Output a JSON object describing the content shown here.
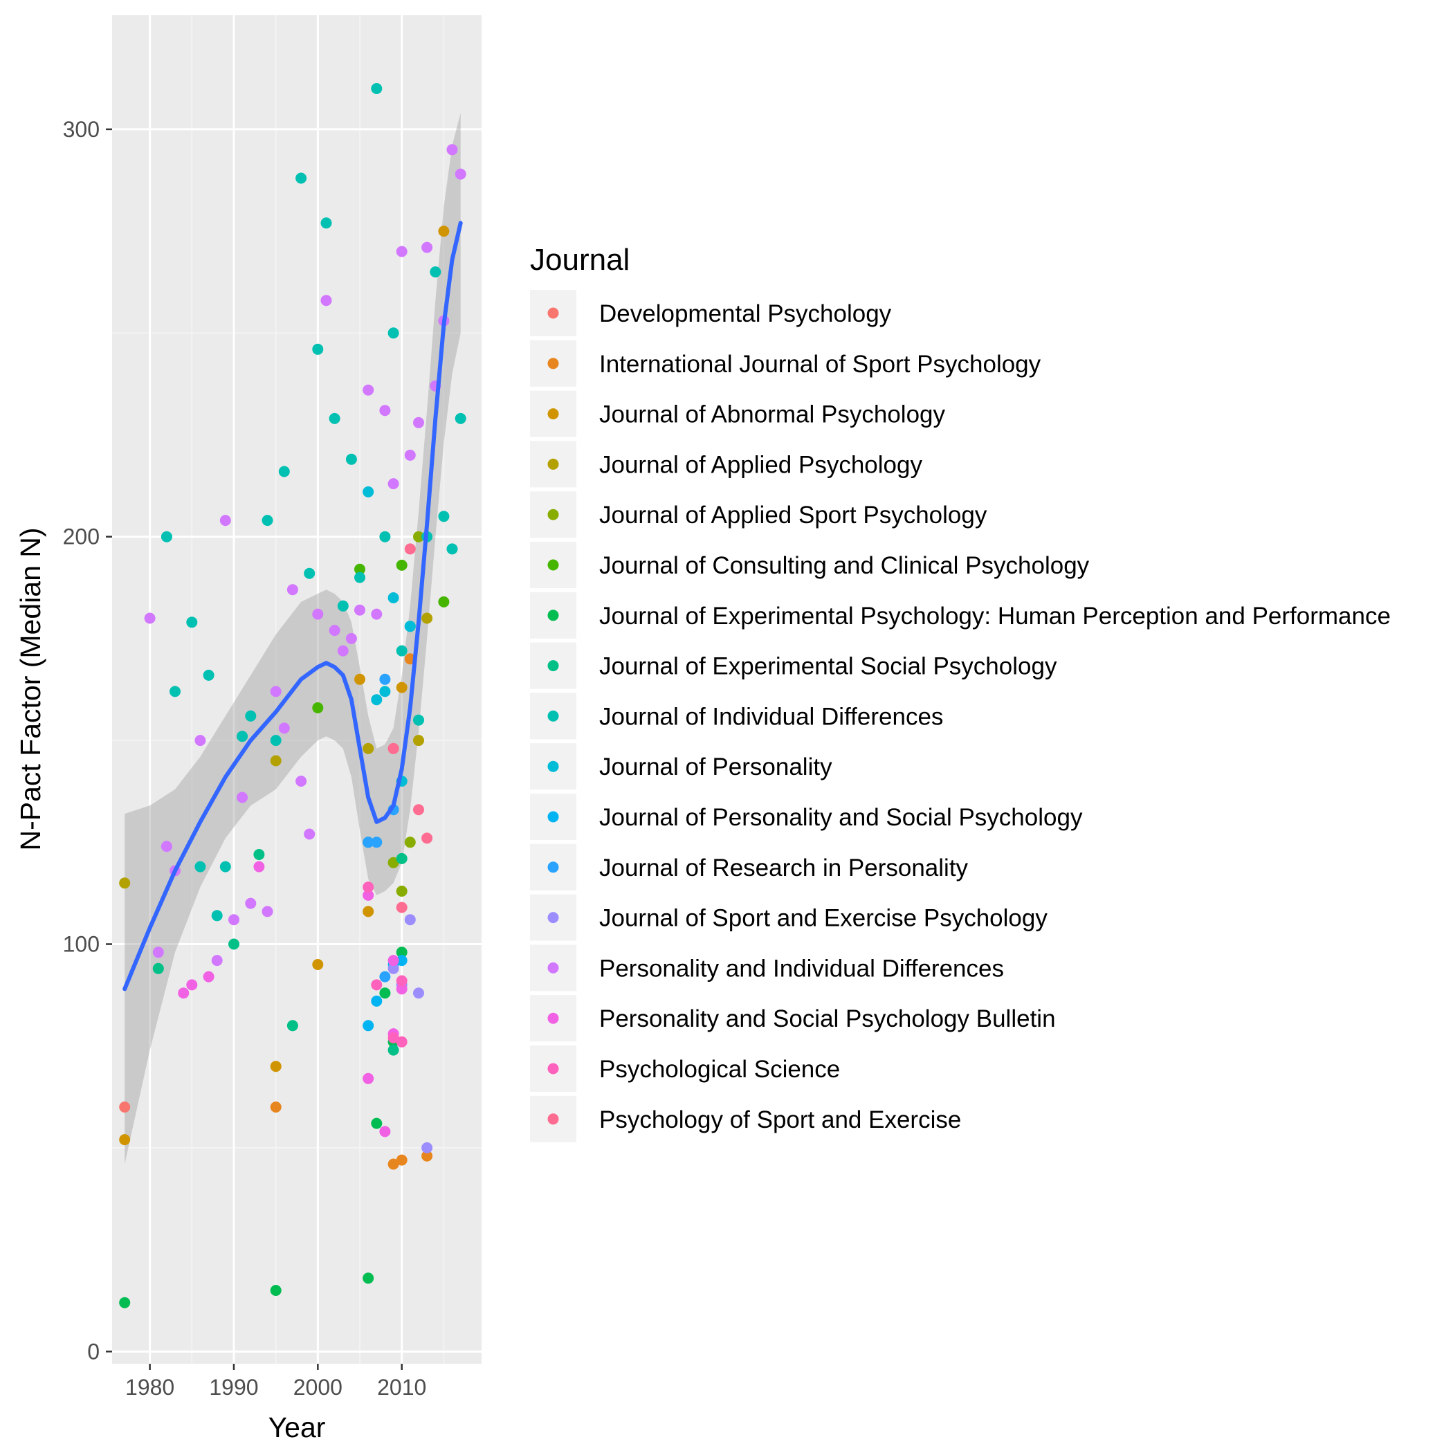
{
  "chart_data": {
    "type": "scatter",
    "xlabel": "Year",
    "ylabel": "N-Pact Factor (Median N)",
    "xlim": [
      1975.5,
      2019.5
    ],
    "ylim": [
      -3,
      328
    ],
    "x_ticks": [
      1980,
      1990,
      2000,
      2010
    ],
    "y_ticks": [
      0,
      100,
      200,
      300
    ],
    "grid": true,
    "legend": {
      "title": "Journal",
      "position": "right"
    },
    "series": [
      {
        "name": "Developmental Psychology",
        "color": "#F8766D",
        "points": [
          [
            1977,
            60
          ],
          [
            2009,
            148
          ]
        ]
      },
      {
        "name": "International Journal of Sport Psychology",
        "color": "#E7851E",
        "points": [
          [
            1995,
            60
          ],
          [
            2009,
            46
          ],
          [
            2010,
            47
          ],
          [
            2011,
            170
          ],
          [
            2013,
            48
          ]
        ]
      },
      {
        "name": "Journal of Abnormal Psychology",
        "color": "#D09400",
        "points": [
          [
            1977,
            52
          ],
          [
            1995,
            70
          ],
          [
            2000,
            95
          ],
          [
            2005,
            165
          ],
          [
            2006,
            108
          ],
          [
            2010,
            163
          ],
          [
            2015,
            275
          ]
        ]
      },
      {
        "name": "Journal of Applied Psychology",
        "color": "#B2A100",
        "points": [
          [
            1977,
            115
          ],
          [
            1995,
            145
          ],
          [
            2006,
            148
          ],
          [
            2012,
            150
          ],
          [
            2013,
            180
          ]
        ]
      },
      {
        "name": "Journal of Applied Sport Psychology",
        "color": "#89AC00",
        "points": [
          [
            2009,
            120
          ],
          [
            2010,
            113
          ],
          [
            2011,
            125
          ],
          [
            2012,
            200
          ]
        ]
      },
      {
        "name": "Journal of Consulting and Clinical Psychology",
        "color": "#45B500",
        "points": [
          [
            2000,
            158
          ],
          [
            2005,
            192
          ],
          [
            2010,
            193
          ],
          [
            2015,
            184
          ]
        ]
      },
      {
        "name": "Journal of Experimental Psychology: Human Perception and Performance",
        "color": "#00BC51",
        "points": [
          [
            1977,
            12
          ],
          [
            1995,
            15
          ],
          [
            2006,
            18
          ],
          [
            2007,
            56
          ],
          [
            2008,
            88
          ],
          [
            2009,
            76
          ],
          [
            2010,
            98
          ]
        ]
      },
      {
        "name": "Journal of Experimental Social Psychology",
        "color": "#00C087",
        "points": [
          [
            1981,
            94
          ],
          [
            1990,
            100
          ],
          [
            1993,
            122
          ],
          [
            1997,
            80
          ],
          [
            2009,
            74
          ],
          [
            2010,
            121
          ]
        ]
      },
      {
        "name": "Journal of Individual Differences",
        "color": "#00C0B2",
        "points": [
          [
            1982,
            200
          ],
          [
            1983,
            162
          ],
          [
            1985,
            179
          ],
          [
            1986,
            119
          ],
          [
            1987,
            166
          ],
          [
            1988,
            107
          ],
          [
            1989,
            119
          ],
          [
            1991,
            151
          ],
          [
            1992,
            156
          ],
          [
            1994,
            204
          ],
          [
            1995,
            150
          ],
          [
            1996,
            216
          ],
          [
            1998,
            288
          ],
          [
            1999,
            191
          ],
          [
            2000,
            246
          ],
          [
            2001,
            277
          ],
          [
            2002,
            229
          ],
          [
            2003,
            183
          ],
          [
            2004,
            219
          ],
          [
            2005,
            190
          ],
          [
            2006,
            125
          ],
          [
            2007,
            310
          ],
          [
            2008,
            200
          ],
          [
            2009,
            250
          ],
          [
            2010,
            172
          ],
          [
            2011,
            178
          ],
          [
            2012,
            155
          ],
          [
            2013,
            200
          ],
          [
            2014,
            265
          ],
          [
            2015,
            205
          ],
          [
            2016,
            197
          ],
          [
            2017,
            229
          ]
        ]
      },
      {
        "name": "Journal of Personality",
        "color": "#00BCD6",
        "points": [
          [
            2006,
            211
          ],
          [
            2007,
            160
          ],
          [
            2008,
            162
          ],
          [
            2009,
            185
          ],
          [
            2010,
            140
          ],
          [
            2011,
            178
          ]
        ]
      },
      {
        "name": "Journal of Personality and Social Psychology",
        "color": "#00B3F2",
        "points": [
          [
            2006,
            80
          ],
          [
            2007,
            86
          ],
          [
            2009,
            95
          ],
          [
            2010,
            96
          ]
        ]
      },
      {
        "name": "Journal of Research in Personality",
        "color": "#29A3FF",
        "points": [
          [
            2006,
            125
          ],
          [
            2007,
            125
          ],
          [
            2008,
            165
          ],
          [
            2008,
            92
          ],
          [
            2009,
            133
          ]
        ]
      },
      {
        "name": "Journal of Sport and Exercise Psychology",
        "color": "#9C8DFF",
        "points": [
          [
            2009,
            94
          ],
          [
            2010,
            90
          ],
          [
            2011,
            106
          ],
          [
            2012,
            88
          ],
          [
            2013,
            50
          ]
        ]
      },
      {
        "name": "Personality and Individual Differences",
        "color": "#D277FF",
        "points": [
          [
            1980,
            180
          ],
          [
            1981,
            98
          ],
          [
            1982,
            124
          ],
          [
            1983,
            118
          ],
          [
            1986,
            150
          ],
          [
            1988,
            96
          ],
          [
            1989,
            204
          ],
          [
            1990,
            106
          ],
          [
            1991,
            136
          ],
          [
            1992,
            110
          ],
          [
            1994,
            108
          ],
          [
            1995,
            162
          ],
          [
            1996,
            153
          ],
          [
            1997,
            187
          ],
          [
            1998,
            140
          ],
          [
            1999,
            127
          ],
          [
            2000,
            181
          ],
          [
            2001,
            258
          ],
          [
            2002,
            177
          ],
          [
            2003,
            172
          ],
          [
            2004,
            175
          ],
          [
            2005,
            182
          ],
          [
            2006,
            236
          ],
          [
            2007,
            181
          ],
          [
            2008,
            231
          ],
          [
            2009,
            213
          ],
          [
            2010,
            270
          ],
          [
            2011,
            220
          ],
          [
            2012,
            228
          ],
          [
            2013,
            271
          ],
          [
            2014,
            237
          ],
          [
            2015,
            253
          ],
          [
            2016,
            295
          ],
          [
            2017,
            289
          ]
        ]
      },
      {
        "name": "Personality and Social Psychology Bulletin",
        "color": "#F161E4",
        "points": [
          [
            1984,
            88
          ],
          [
            1985,
            90
          ],
          [
            1987,
            92
          ],
          [
            1993,
            119
          ],
          [
            2006,
            112
          ],
          [
            2006,
            67
          ],
          [
            2008,
            54
          ],
          [
            2009,
            96
          ],
          [
            2009,
            78
          ],
          [
            2010,
            89
          ]
        ]
      },
      {
        "name": "Psychological Science",
        "color": "#FF62BC",
        "points": [
          [
            2006,
            114
          ],
          [
            2007,
            90
          ],
          [
            2009,
            77
          ],
          [
            2010,
            76
          ],
          [
            2010,
            91
          ]
        ]
      },
      {
        "name": "Psychology of Sport and Exercise",
        "color": "#FF6C91",
        "points": [
          [
            2009,
            148
          ],
          [
            2010,
            109
          ],
          [
            2011,
            197
          ],
          [
            2012,
            133
          ],
          [
            2013,
            126
          ]
        ]
      }
    ],
    "smooth": {
      "color": "#3366FF",
      "ribbon_color": "#999999",
      "x": [
        1977,
        1980,
        1983,
        1986,
        1989,
        1992,
        1995,
        1998,
        2000,
        2001,
        2002,
        2003,
        2004,
        2005,
        2006,
        2007,
        2008,
        2009,
        2010,
        2011,
        2012,
        2013,
        2014,
        2015,
        2016,
        2017
      ],
      "y": [
        89,
        104,
        118,
        130,
        141,
        150,
        157,
        165,
        168,
        169,
        168,
        166,
        160,
        148,
        136,
        130,
        131,
        134,
        143,
        158,
        179,
        203,
        229,
        252,
        268,
        277
      ],
      "lower": [
        46,
        74,
        98,
        114,
        126,
        134,
        138,
        146,
        150,
        151,
        150,
        148,
        141,
        128,
        116,
        112,
        113,
        115,
        120,
        133,
        152,
        175,
        200,
        223,
        240,
        250
      ],
      "upper": [
        132,
        134,
        138,
        146,
        156,
        166,
        176,
        184,
        186,
        187,
        186,
        184,
        179,
        168,
        156,
        148,
        149,
        153,
        166,
        183,
        206,
        231,
        258,
        281,
        296,
        304
      ]
    }
  }
}
